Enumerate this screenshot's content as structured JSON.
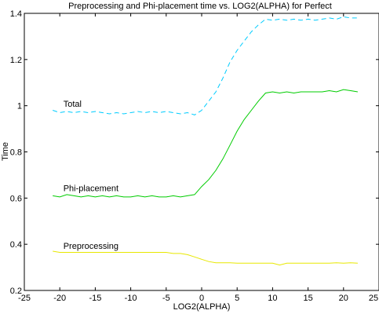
{
  "chart_data": {
    "type": "line",
    "title": "Preprocessing and Phi-placement time vs. LOG2(ALPHA) for Perfect",
    "xlabel": "LOG2(ALPHA)",
    "ylabel": "Time",
    "xlim": [
      -25,
      25
    ],
    "ylim": [
      0.2,
      1.4
    ],
    "xticks": [
      -25,
      -20,
      -15,
      -10,
      -5,
      0,
      5,
      10,
      15,
      20,
      25
    ],
    "yticks": [
      0.2,
      0.4,
      0.6,
      0.8,
      1,
      1.2,
      1.4
    ],
    "xtick_labels": [
      "-25",
      "-20",
      "-15",
      "-10",
      "-5",
      "0",
      "5",
      "10",
      "15",
      "20",
      "25"
    ],
    "ytick_labels": [
      "0.2",
      "0.4",
      "0.6",
      "0.8",
      "1",
      "1.2",
      "1.4"
    ],
    "grid": false,
    "legend": "none",
    "annotations": [
      {
        "text": "Total",
        "x": -19.5,
        "y": 0.995
      },
      {
        "text": "Phi-placement",
        "x": -19.5,
        "y": 0.63
      },
      {
        "text": "Preprocessing",
        "x": -19.5,
        "y": 0.38
      }
    ],
    "series": [
      {
        "color": "#00ccff",
        "dash": "dashed",
        "x": [
          -21,
          -20,
          -19,
          -18,
          -17,
          -16,
          -15,
          -14,
          -13,
          -12,
          -11,
          -10,
          -9,
          -8,
          -7,
          -6,
          -5,
          -4,
          -3,
          -2,
          -1,
          0,
          1,
          2,
          3,
          4,
          5,
          6,
          7,
          8,
          9,
          10,
          11,
          12,
          13,
          14,
          15,
          16,
          17,
          18,
          19,
          20,
          21,
          22
        ],
        "values": [
          0.98,
          0.97,
          0.975,
          0.97,
          0.975,
          0.97,
          0.975,
          0.97,
          0.965,
          0.97,
          0.965,
          0.97,
          0.975,
          0.97,
          0.975,
          0.97,
          0.975,
          0.97,
          0.965,
          0.97,
          0.96,
          0.98,
          1.02,
          1.06,
          1.12,
          1.19,
          1.24,
          1.28,
          1.32,
          1.35,
          1.375,
          1.37,
          1.375,
          1.37,
          1.375,
          1.37,
          1.375,
          1.37,
          1.375,
          1.38,
          1.375,
          1.385,
          1.38,
          1.38
        ]
      },
      {
        "color": "#00cc00",
        "dash": "solid",
        "x": [
          -21,
          -20,
          -19,
          -18,
          -17,
          -16,
          -15,
          -14,
          -13,
          -12,
          -11,
          -10,
          -9,
          -8,
          -7,
          -6,
          -5,
          -4,
          -3,
          -2,
          -1,
          0,
          1,
          2,
          3,
          4,
          5,
          6,
          7,
          8,
          9,
          10,
          11,
          12,
          13,
          14,
          15,
          16,
          17,
          18,
          19,
          20,
          21,
          22
        ],
        "values": [
          0.61,
          0.605,
          0.615,
          0.61,
          0.605,
          0.61,
          0.605,
          0.61,
          0.605,
          0.61,
          0.605,
          0.605,
          0.61,
          0.605,
          0.61,
          0.605,
          0.605,
          0.61,
          0.605,
          0.61,
          0.615,
          0.65,
          0.68,
          0.72,
          0.77,
          0.83,
          0.89,
          0.94,
          0.98,
          1.02,
          1.055,
          1.06,
          1.055,
          1.06,
          1.055,
          1.06,
          1.06,
          1.06,
          1.06,
          1.065,
          1.06,
          1.07,
          1.065,
          1.06
        ]
      },
      {
        "color": "#e8e800",
        "dash": "solid",
        "x": [
          -21,
          -20,
          -19,
          -18,
          -17,
          -16,
          -15,
          -14,
          -13,
          -12,
          -11,
          -10,
          -9,
          -8,
          -7,
          -6,
          -5,
          -4,
          -3,
          -2,
          -1,
          0,
          1,
          2,
          3,
          4,
          5,
          6,
          7,
          8,
          9,
          10,
          11,
          12,
          13,
          14,
          15,
          16,
          17,
          18,
          19,
          20,
          21,
          22
        ],
        "values": [
          0.37,
          0.365,
          0.365,
          0.365,
          0.365,
          0.365,
          0.365,
          0.365,
          0.365,
          0.365,
          0.365,
          0.365,
          0.365,
          0.365,
          0.365,
          0.365,
          0.365,
          0.36,
          0.36,
          0.355,
          0.345,
          0.335,
          0.325,
          0.32,
          0.32,
          0.32,
          0.318,
          0.318,
          0.318,
          0.318,
          0.318,
          0.318,
          0.31,
          0.318,
          0.318,
          0.318,
          0.318,
          0.318,
          0.318,
          0.318,
          0.32,
          0.318,
          0.32,
          0.318
        ]
      }
    ]
  }
}
